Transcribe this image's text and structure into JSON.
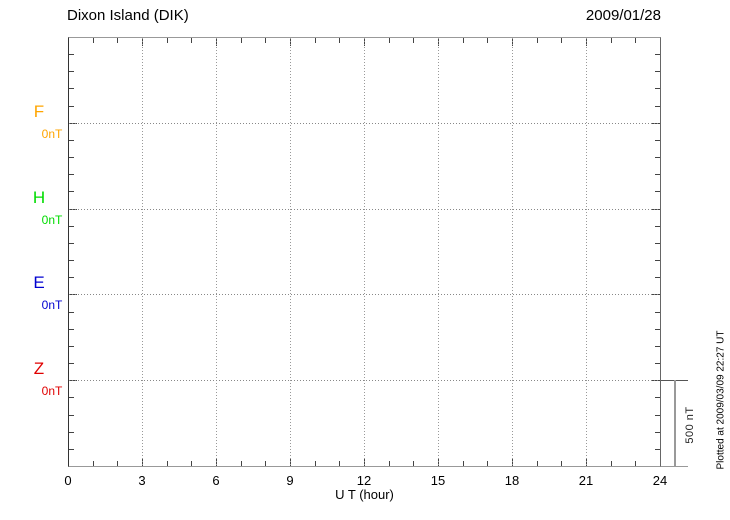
{
  "header": {
    "title": "Dixon Island (DIK)",
    "date": "2009/01/28"
  },
  "chart_data": {
    "type": "line",
    "title": "Dixon Island (DIK)",
    "date": "2009/01/28",
    "xlabel": "U T (hour)",
    "xlim": [
      0,
      24
    ],
    "x_major_ticks": [
      0,
      3,
      6,
      9,
      12,
      15,
      18,
      21,
      24
    ],
    "x_minor_step_hours": 1,
    "grid": {
      "vertical_dotted_every_hours": 3,
      "horizontal_dotted_at_channel_baselines": true,
      "style": "dotted"
    },
    "y_minor_ticks_per_channel_interval": 5,
    "channel_spacing_nT": 500,
    "channels": [
      {
        "label": "F",
        "baseline_label": "0nT",
        "color": "#FFA500",
        "series": []
      },
      {
        "label": "H",
        "baseline_label": "0nT",
        "color": "#00DC00",
        "series": []
      },
      {
        "label": "E",
        "baseline_label": "0nT",
        "color": "#0000D0",
        "series": []
      },
      {
        "label": "Z",
        "baseline_label": "0nT",
        "color": "#E00000",
        "series": []
      }
    ],
    "scale_bar": {
      "label": "500 nT"
    }
  },
  "footer": {
    "plotted_at": "Plotted at 2009/03/09 22:27 UT"
  }
}
